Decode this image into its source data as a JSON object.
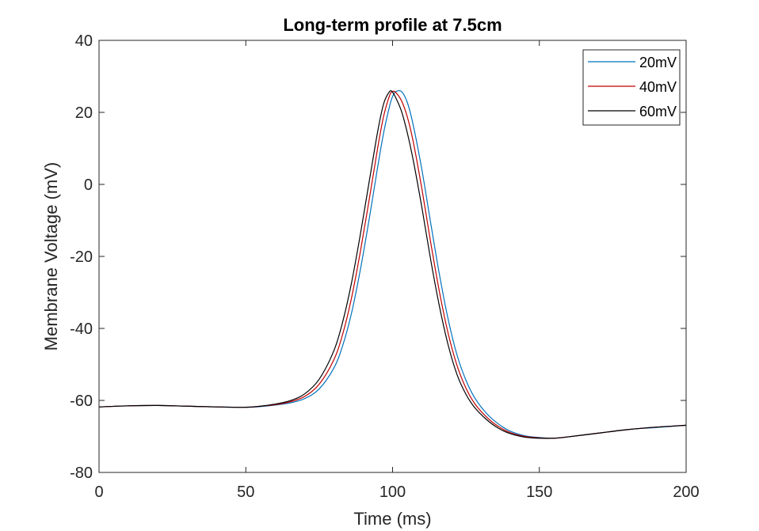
{
  "chart_data": {
    "type": "line",
    "title": "Long-term profile at 7.5cm",
    "xlabel": "Time (ms)",
    "ylabel": "Membrane Voltage (mV)",
    "xlim": [
      0,
      200
    ],
    "ylim": [
      -80,
      40
    ],
    "xticks": [
      0,
      50,
      100,
      150,
      200
    ],
    "yticks": [
      -80,
      -60,
      -40,
      -20,
      0,
      20,
      40
    ],
    "grid": false,
    "legend": "top-right",
    "series": [
      {
        "name": "20mV",
        "color": "#0072BD",
        "x": [
          0,
          10,
          20,
          30,
          40,
          50,
          55,
          60,
          65,
          70,
          75,
          80,
          83,
          86,
          89,
          92,
          95,
          97,
          99,
          100,
          101,
          103,
          105,
          107,
          110,
          113,
          116,
          119,
          122,
          125,
          128,
          132,
          136,
          140,
          145,
          150,
          155,
          160,
          170,
          180,
          190,
          200
        ],
        "y": [
          -61.8,
          -61.5,
          -61.4,
          -61.6,
          -61.8,
          -61.9,
          -61.7,
          -61.3,
          -60.7,
          -59.5,
          -56.8,
          -51.0,
          -44.8,
          -35.8,
          -23.8,
          -9.8,
          5.2,
          14.5,
          21.8,
          24.4,
          25.7,
          25.8,
          22.8,
          16.6,
          4.0,
          -10.8,
          -25.2,
          -37.7,
          -47.5,
          -54.4,
          -59.3,
          -63.6,
          -66.5,
          -68.5,
          -69.8,
          -70.3,
          -70.5,
          -70.1,
          -69.1,
          -68.1,
          -67.5,
          -66.9
        ]
      },
      {
        "name": "40mV",
        "color": "#C00000",
        "x": [
          0,
          10,
          20,
          30,
          40,
          50,
          55,
          60,
          65,
          70,
          75,
          80,
          83,
          86,
          89,
          92,
          95,
          97,
          99,
          100,
          101,
          103,
          105,
          107,
          110,
          113,
          116,
          119,
          122,
          125,
          128,
          132,
          136,
          140,
          145,
          150,
          155,
          160,
          170,
          180,
          190,
          200
        ],
        "y": [
          -61.8,
          -61.5,
          -61.4,
          -61.6,
          -61.8,
          -61.9,
          -61.6,
          -61.2,
          -60.4,
          -58.9,
          -55.5,
          -48.7,
          -41.6,
          -31.6,
          -18.8,
          -4.4,
          10.5,
          19.1,
          24.7,
          25.8,
          25.6,
          23.3,
          18.8,
          12.0,
          -1.3,
          -16.2,
          -30.0,
          -41.6,
          -50.4,
          -56.6,
          -60.9,
          -64.6,
          -67.2,
          -68.9,
          -70.0,
          -70.4,
          -70.5,
          -70.1,
          -69.1,
          -68.1,
          -67.4,
          -66.9
        ]
      },
      {
        "name": "60mV",
        "color": "#000000",
        "x": [
          0,
          10,
          20,
          30,
          40,
          50,
          55,
          60,
          65,
          70,
          75,
          80,
          83,
          86,
          89,
          92,
          95,
          97,
          99,
          100,
          101,
          103,
          105,
          107,
          110,
          113,
          116,
          119,
          122,
          125,
          128,
          132,
          136,
          140,
          145,
          150,
          155,
          160,
          170,
          180,
          190,
          200
        ],
        "y": [
          -61.8,
          -61.5,
          -61.4,
          -61.6,
          -61.8,
          -61.9,
          -61.6,
          -61.0,
          -60.1,
          -58.2,
          -54.1,
          -46.2,
          -38.2,
          -27.4,
          -14.0,
          0.6,
          15.0,
          22.5,
          25.8,
          25.6,
          24.2,
          20.4,
          14.4,
          6.9,
          -6.5,
          -21.0,
          -34.0,
          -44.8,
          -52.9,
          -58.3,
          -62.0,
          -65.3,
          -67.7,
          -69.2,
          -70.2,
          -70.5,
          -70.5,
          -70.1,
          -69.1,
          -68.1,
          -67.4,
          -66.9
        ]
      }
    ]
  }
}
